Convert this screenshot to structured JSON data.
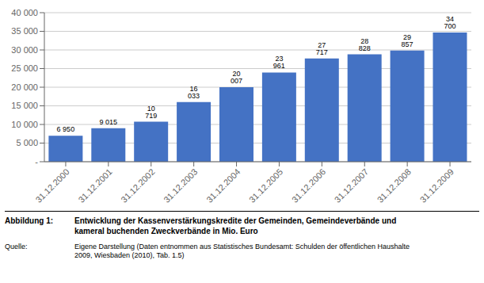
{
  "chart_data": {
    "type": "bar",
    "categories": [
      "31.12.2000",
      "31.12.2001",
      "31.12.2002",
      "31.12.2003",
      "31.12.2004",
      "31.12.2005",
      "31.12.2006",
      "31.12.2007",
      "31.12.2008",
      "31.12.2009"
    ],
    "values": [
      6950,
      9015,
      10719,
      16033,
      20007,
      23961,
      27717,
      28828,
      29857,
      34700
    ],
    "value_labels": [
      "6 950",
      "9 015",
      "10 719",
      "16 033",
      "20 007",
      "23 961",
      "27 717",
      "28 828",
      "29 857",
      "34 700"
    ],
    "data_labels": true,
    "color": "#4472C4",
    "ylim": [
      0,
      40000
    ],
    "yticks": [
      {
        "value": 0,
        "label": "-"
      },
      {
        "value": 5000,
        "label": "5 000"
      },
      {
        "value": 10000,
        "label": "10 000"
      },
      {
        "value": 15000,
        "label": "15 000"
      },
      {
        "value": 20000,
        "label": "20 000"
      },
      {
        "value": 25000,
        "label": "25 000"
      },
      {
        "value": 30000,
        "label": "30 000"
      },
      {
        "value": 35000,
        "label": "35 000"
      },
      {
        "value": 40000,
        "label": "40 000"
      }
    ],
    "grid": true,
    "annotations": [
      "Abbildung 1:",
      "Entwicklung der Kassenverstärkungskredite der Gemeinden, Gemeindeverbände und\nkameral buchenden Zweckverbände in Mio. Euro",
      "Quelle:",
      "Eigene Darstellung (Daten entnommen aus Statistisches Bundesamt: Schulden der öffentlichen Haushalte\n2009, Wiesbaden (2010), Tab. 1.5)"
    ]
  }
}
